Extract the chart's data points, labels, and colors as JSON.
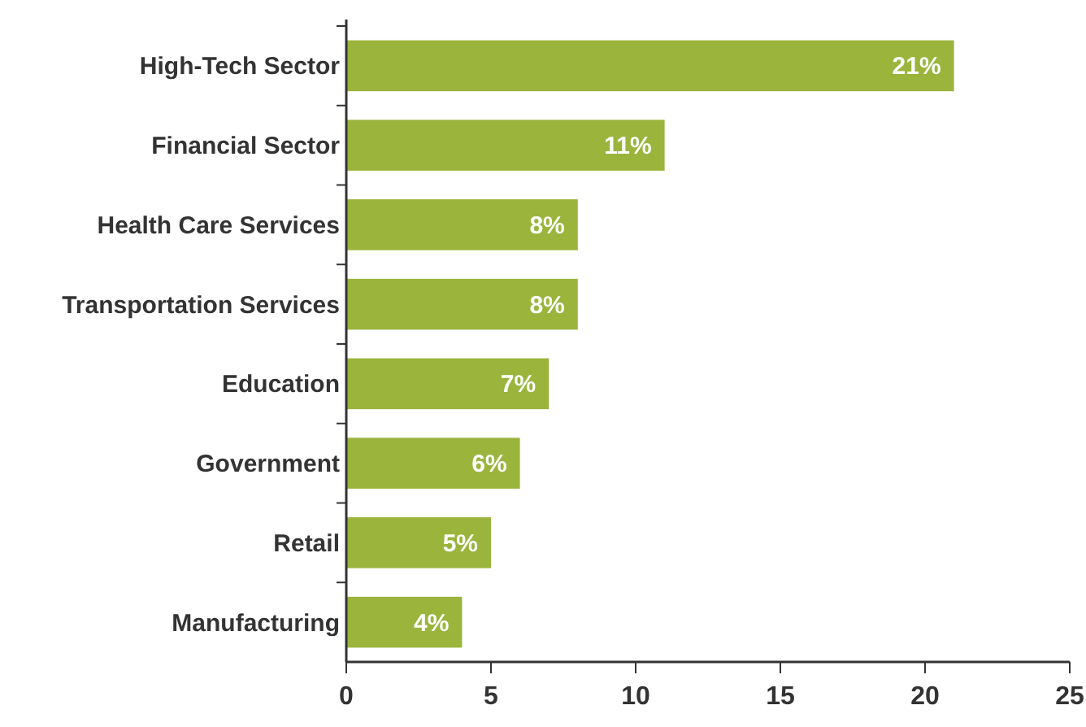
{
  "chart_data": {
    "type": "bar",
    "orientation": "horizontal",
    "categories": [
      "High-Tech Sector",
      "Financial Sector",
      "Health Care Services",
      "Transportation Services",
      "Education",
      "Government",
      "Retail",
      "Manufacturing"
    ],
    "values": [
      21,
      11,
      8,
      8,
      7,
      6,
      5,
      4
    ],
    "value_labels": [
      "21%",
      "11%",
      "8%",
      "8%",
      "7%",
      "6%",
      "5%",
      "4%"
    ],
    "color": "#9bb43c",
    "xlim": [
      0,
      25
    ],
    "xticks": [
      0,
      5,
      10,
      15,
      20,
      25
    ],
    "grid": false
  }
}
